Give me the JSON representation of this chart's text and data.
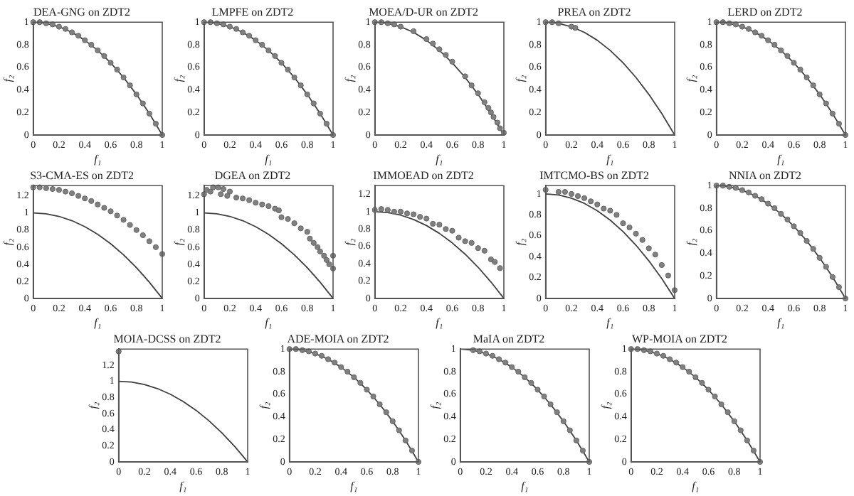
{
  "chart_data": [
    {
      "type": "scatter",
      "title": "DEA-GNG on ZDT2",
      "xlabel": "f₁",
      "ylabel": "f₂",
      "xlim": [
        0,
        1
      ],
      "ylim": [
        0,
        1
      ],
      "xticks": [
        0,
        0.2,
        0.4,
        0.6,
        0.8,
        1
      ],
      "yticks": [
        0,
        0.2,
        0.4,
        0.6,
        0.8,
        1
      ],
      "series": [
        {
          "type": "scatter",
          "marker": "circle",
          "color": "#808080",
          "x": [
            0,
            0.05,
            0.1,
            0.15,
            0.2,
            0.25,
            0.3,
            0.35,
            0.4,
            0.45,
            0.5,
            0.55,
            0.6,
            0.65,
            0.7,
            0.75,
            0.8,
            0.85,
            0.9,
            0.95,
            1
          ],
          "values": [
            1,
            1,
            0.99,
            0.98,
            0.96,
            0.94,
            0.91,
            0.88,
            0.84,
            0.8,
            0.75,
            0.7,
            0.64,
            0.58,
            0.51,
            0.44,
            0.36,
            0.28,
            0.19,
            0.1,
            0
          ]
        },
        {
          "type": "line",
          "marker": "none",
          "color": "#404040",
          "x": [
            0,
            0.1,
            0.2,
            0.3,
            0.4,
            0.5,
            0.6,
            0.7,
            0.8,
            0.9,
            1
          ],
          "values": [
            1,
            0.99,
            0.96,
            0.91,
            0.84,
            0.75,
            0.64,
            0.51,
            0.36,
            0.19,
            0
          ]
        }
      ]
    },
    {
      "type": "scatter",
      "title": "LMPFE on ZDT2",
      "xlabel": "f₁",
      "ylabel": "f₂",
      "xlim": [
        0,
        1
      ],
      "ylim": [
        0,
        1
      ],
      "xticks": [
        0,
        0.2,
        0.4,
        0.6,
        0.8,
        1
      ],
      "yticks": [
        0,
        0.2,
        0.4,
        0.6,
        0.8,
        1
      ],
      "series": [
        {
          "type": "scatter",
          "marker": "circle",
          "color": "#808080",
          "x": [
            0,
            0.05,
            0.1,
            0.15,
            0.2,
            0.25,
            0.3,
            0.35,
            0.4,
            0.45,
            0.5,
            0.55,
            0.6,
            0.65,
            0.7,
            0.75,
            0.8,
            0.85,
            0.9,
            0.95,
            1
          ],
          "values": [
            1,
            1,
            0.99,
            0.98,
            0.96,
            0.94,
            0.91,
            0.88,
            0.84,
            0.8,
            0.75,
            0.7,
            0.64,
            0.58,
            0.51,
            0.44,
            0.36,
            0.28,
            0.19,
            0.1,
            0
          ]
        },
        {
          "type": "line",
          "marker": "none",
          "color": "#404040",
          "x": [
            0,
            0.1,
            0.2,
            0.3,
            0.4,
            0.5,
            0.6,
            0.7,
            0.8,
            0.9,
            1
          ],
          "values": [
            1,
            0.99,
            0.96,
            0.91,
            0.84,
            0.75,
            0.64,
            0.51,
            0.36,
            0.19,
            0
          ]
        }
      ]
    },
    {
      "type": "scatter",
      "title": "MOEA/D-UR on ZDT2",
      "xlabel": "f₁",
      "ylabel": "f₂",
      "xlim": [
        0,
        1
      ],
      "ylim": [
        0,
        1
      ],
      "xticks": [
        0,
        0.2,
        0.4,
        0.6,
        0.8,
        1
      ],
      "yticks": [
        0,
        0.2,
        0.4,
        0.6,
        0.8,
        1
      ],
      "series": [
        {
          "type": "scatter",
          "marker": "circle",
          "color": "#808080",
          "x": [
            0,
            0.05,
            0.1,
            0.15,
            0.2,
            0.3,
            0.4,
            0.45,
            0.5,
            0.55,
            0.6,
            0.7,
            0.75,
            0.8,
            0.85,
            0.88,
            0.9,
            0.92,
            0.95,
            0.97,
            1
          ],
          "values": [
            1,
            1,
            0.99,
            0.98,
            0.96,
            0.92,
            0.85,
            0.81,
            0.76,
            0.71,
            0.65,
            0.52,
            0.44,
            0.37,
            0.29,
            0.24,
            0.2,
            0.16,
            0.11,
            0.06,
            0.02
          ]
        },
        {
          "type": "line",
          "marker": "none",
          "color": "#404040",
          "x": [
            0,
            0.1,
            0.2,
            0.3,
            0.4,
            0.5,
            0.6,
            0.7,
            0.8,
            0.9,
            1
          ],
          "values": [
            1,
            0.99,
            0.96,
            0.91,
            0.84,
            0.75,
            0.64,
            0.51,
            0.36,
            0.19,
            0
          ]
        }
      ]
    },
    {
      "type": "scatter",
      "title": "PREA on ZDT2",
      "xlabel": "f₁",
      "ylabel": "f₂",
      "xlim": [
        0,
        1
      ],
      "ylim": [
        0,
        1
      ],
      "xticks": [
        0,
        0.2,
        0.4,
        0.6,
        0.8,
        1
      ],
      "yticks": [
        0,
        0.2,
        0.4,
        0.6,
        0.8,
        1
      ],
      "series": [
        {
          "type": "scatter",
          "marker": "circle",
          "color": "#808080",
          "x": [
            0,
            0.05,
            0.1,
            0.2,
            0.23
          ],
          "values": [
            1,
            1,
            0.99,
            0.96,
            0.95
          ]
        },
        {
          "type": "line",
          "marker": "none",
          "color": "#404040",
          "x": [
            0,
            0.1,
            0.2,
            0.3,
            0.4,
            0.5,
            0.6,
            0.7,
            0.8,
            0.9,
            1
          ],
          "values": [
            1,
            0.99,
            0.96,
            0.91,
            0.84,
            0.75,
            0.64,
            0.51,
            0.36,
            0.19,
            0
          ]
        }
      ]
    },
    {
      "type": "scatter",
      "title": "LERD on ZDT2",
      "xlabel": "f₁",
      "ylabel": "f₂",
      "xlim": [
        0,
        1
      ],
      "ylim": [
        0,
        1
      ],
      "xticks": [
        0,
        0.2,
        0.4,
        0.6,
        0.8,
        1
      ],
      "yticks": [
        0,
        0.2,
        0.4,
        0.6,
        0.8,
        1
      ],
      "series": [
        {
          "type": "scatter",
          "marker": "circle",
          "color": "#808080",
          "x": [
            0,
            0.05,
            0.1,
            0.15,
            0.2,
            0.25,
            0.3,
            0.35,
            0.4,
            0.45,
            0.5,
            0.55,
            0.6,
            0.65,
            0.7,
            0.75,
            0.8,
            0.85,
            0.9,
            0.95,
            1
          ],
          "values": [
            1,
            1,
            0.99,
            0.98,
            0.96,
            0.94,
            0.91,
            0.88,
            0.84,
            0.8,
            0.75,
            0.7,
            0.64,
            0.58,
            0.51,
            0.44,
            0.36,
            0.28,
            0.19,
            0.1,
            0
          ]
        },
        {
          "type": "line",
          "marker": "none",
          "color": "#404040",
          "x": [
            0,
            0.1,
            0.2,
            0.3,
            0.4,
            0.5,
            0.6,
            0.7,
            0.8,
            0.9,
            1
          ],
          "values": [
            1,
            0.99,
            0.96,
            0.91,
            0.84,
            0.75,
            0.64,
            0.51,
            0.36,
            0.19,
            0
          ]
        }
      ]
    },
    {
      "type": "scatter",
      "title": "S3-CMA-ES on ZDT2",
      "xlabel": "f₁",
      "ylabel": "f₂",
      "xlim": [
        0,
        1
      ],
      "ylim": [
        0,
        1.32
      ],
      "xticks": [
        0,
        0.2,
        0.4,
        0.6,
        0.8,
        1
      ],
      "yticks": [
        0,
        0.2,
        0.4,
        0.6,
        0.8,
        1,
        1.2
      ],
      "series": [
        {
          "type": "scatter",
          "marker": "circle",
          "color": "#808080",
          "x": [
            0,
            0.05,
            0.1,
            0.15,
            0.2,
            0.25,
            0.3,
            0.35,
            0.4,
            0.45,
            0.5,
            0.55,
            0.6,
            0.65,
            0.7,
            0.75,
            0.8,
            0.85,
            0.9,
            0.95,
            1
          ],
          "values": [
            1.3,
            1.3,
            1.29,
            1.28,
            1.27,
            1.25,
            1.23,
            1.2,
            1.17,
            1.14,
            1.1,
            1.06,
            1.02,
            0.97,
            0.92,
            0.86,
            0.8,
            0.74,
            0.67,
            0.6,
            0.52
          ]
        },
        {
          "type": "line",
          "marker": "none",
          "color": "#404040",
          "x": [
            0,
            0.1,
            0.2,
            0.3,
            0.4,
            0.5,
            0.6,
            0.7,
            0.8,
            0.9,
            1
          ],
          "values": [
            1,
            0.99,
            0.96,
            0.91,
            0.84,
            0.75,
            0.64,
            0.51,
            0.36,
            0.19,
            0
          ]
        }
      ]
    },
    {
      "type": "scatter",
      "title": "DGEA on ZDT2",
      "xlabel": "f₁",
      "ylabel": "f₂",
      "xlim": [
        0,
        1
      ],
      "ylim": [
        0,
        1.32
      ],
      "xticks": [
        0,
        0.2,
        0.4,
        0.6,
        0.8,
        1
      ],
      "yticks": [
        0,
        0.2,
        0.4,
        0.6,
        0.8,
        1,
        1.2
      ],
      "series": [
        {
          "type": "scatter",
          "marker": "circle",
          "color": "#808080",
          "x": [
            0,
            0.02,
            0.05,
            0.07,
            0.11,
            0.13,
            0.15,
            0.18,
            0.2,
            0.25,
            0.3,
            0.35,
            0.4,
            0.45,
            0.5,
            0.55,
            0.58,
            0.6,
            0.65,
            0.7,
            0.75,
            0.8,
            0.82,
            0.85,
            0.88,
            0.9,
            0.93,
            0.95,
            0.97,
            1,
            1
          ],
          "values": [
            1.22,
            1.27,
            1.25,
            1.3,
            1.3,
            1.22,
            1.28,
            1.2,
            1.25,
            1.18,
            1.17,
            1.15,
            1.12,
            1.1,
            1.08,
            1.05,
            1.03,
            0.95,
            0.93,
            0.88,
            0.82,
            0.78,
            0.7,
            0.65,
            0.6,
            0.55,
            0.5,
            0.45,
            0.4,
            0.35,
            0.5
          ]
        },
        {
          "type": "line",
          "marker": "none",
          "color": "#404040",
          "x": [
            0,
            0.1,
            0.2,
            0.3,
            0.4,
            0.5,
            0.6,
            0.7,
            0.8,
            0.9,
            1
          ],
          "values": [
            1,
            0.99,
            0.96,
            0.91,
            0.84,
            0.75,
            0.64,
            0.51,
            0.36,
            0.19,
            0
          ]
        }
      ]
    },
    {
      "type": "scatter",
      "title": "IMMOEAD on ZDT2",
      "xlabel": "f₁",
      "ylabel": "f₂",
      "xlim": [
        0,
        1
      ],
      "ylim": [
        0,
        1.3
      ],
      "xticks": [
        0,
        0.2,
        0.4,
        0.6,
        0.8,
        1
      ],
      "yticks": [
        0,
        0.2,
        0.4,
        0.6,
        0.8,
        1,
        1.2
      ],
      "series": [
        {
          "type": "scatter",
          "marker": "circle",
          "color": "#808080",
          "x": [
            0,
            0.05,
            0.1,
            0.15,
            0.2,
            0.25,
            0.3,
            0.35,
            0.4,
            0.45,
            0.5,
            0.55,
            0.6,
            0.65,
            0.7,
            0.75,
            0.8,
            0.85,
            0.9,
            0.93,
            0.97
          ],
          "values": [
            1.02,
            1.03,
            1.02,
            1,
            1,
            0.98,
            0.97,
            0.94,
            0.92,
            0.86,
            0.85,
            0.8,
            0.78,
            0.7,
            0.66,
            0.64,
            0.58,
            0.55,
            0.45,
            0.42,
            0.35
          ]
        },
        {
          "type": "line",
          "marker": "none",
          "color": "#404040",
          "x": [
            0,
            0.1,
            0.2,
            0.3,
            0.4,
            0.5,
            0.6,
            0.7,
            0.8,
            0.9,
            1
          ],
          "values": [
            1,
            0.99,
            0.96,
            0.91,
            0.84,
            0.75,
            0.64,
            0.51,
            0.36,
            0.19,
            0
          ]
        }
      ]
    },
    {
      "type": "scatter",
      "title": "IMTCMO-BS on ZDT2",
      "xlabel": "f₁",
      "ylabel": "f₂",
      "xlim": [
        0,
        1
      ],
      "ylim": [
        0,
        1.08
      ],
      "xticks": [
        0,
        0.2,
        0.4,
        0.6,
        0.8,
        1
      ],
      "yticks": [
        0,
        0.2,
        0.4,
        0.6,
        0.8,
        1
      ],
      "series": [
        {
          "type": "scatter",
          "marker": "circle",
          "color": "#808080",
          "x": [
            0,
            0.1,
            0.15,
            0.2,
            0.25,
            0.3,
            0.35,
            0.4,
            0.45,
            0.5,
            0.55,
            0.6,
            0.65,
            0.7,
            0.75,
            0.8,
            0.85,
            0.9,
            0.95,
            1
          ],
          "values": [
            1.04,
            1.02,
            1.02,
            1,
            0.98,
            0.96,
            0.93,
            0.9,
            0.86,
            0.84,
            0.8,
            0.72,
            0.68,
            0.62,
            0.56,
            0.48,
            0.42,
            0.32,
            0.22,
            0.08
          ]
        },
        {
          "type": "line",
          "marker": "none",
          "color": "#404040",
          "x": [
            0,
            0.1,
            0.2,
            0.3,
            0.4,
            0.5,
            0.6,
            0.7,
            0.8,
            0.9,
            1
          ],
          "values": [
            1,
            0.99,
            0.96,
            0.91,
            0.84,
            0.75,
            0.64,
            0.51,
            0.36,
            0.19,
            0
          ]
        }
      ]
    },
    {
      "type": "scatter",
      "title": "NNIA on ZDT2",
      "xlabel": "f₁",
      "ylabel": "f₂",
      "xlim": [
        0,
        1
      ],
      "ylim": [
        0,
        1
      ],
      "xticks": [
        0,
        0.2,
        0.4,
        0.6,
        0.8,
        1
      ],
      "yticks": [
        0,
        0.2,
        0.4,
        0.6,
        0.8,
        1
      ],
      "series": [
        {
          "type": "scatter",
          "marker": "circle",
          "color": "#808080",
          "x": [
            0,
            0.05,
            0.1,
            0.15,
            0.2,
            0.25,
            0.3,
            0.35,
            0.4,
            0.45,
            0.5,
            0.55,
            0.6,
            0.65,
            0.7,
            0.75,
            0.8,
            0.85,
            0.9,
            0.95,
            1
          ],
          "values": [
            1,
            1,
            0.99,
            0.98,
            0.96,
            0.94,
            0.91,
            0.88,
            0.84,
            0.8,
            0.75,
            0.7,
            0.64,
            0.58,
            0.51,
            0.44,
            0.36,
            0.28,
            0.19,
            0.1,
            0
          ]
        },
        {
          "type": "line",
          "marker": "none",
          "color": "#404040",
          "x": [
            0,
            0.1,
            0.2,
            0.3,
            0.4,
            0.5,
            0.6,
            0.7,
            0.8,
            0.9,
            1
          ],
          "values": [
            1,
            0.99,
            0.96,
            0.91,
            0.84,
            0.75,
            0.64,
            0.51,
            0.36,
            0.19,
            0
          ]
        }
      ]
    },
    {
      "type": "scatter",
      "title": "MOIA-DCSS on ZDT2",
      "xlabel": "f₁",
      "ylabel": "f₂",
      "xlim": [
        0,
        1
      ],
      "ylim": [
        0,
        1.4
      ],
      "xticks": [
        0,
        0.2,
        0.4,
        0.6,
        0.8,
        1
      ],
      "yticks": [
        0,
        0.2,
        0.4,
        0.6,
        0.8,
        1,
        1.2
      ],
      "series": [
        {
          "type": "scatter",
          "marker": "circle",
          "color": "#808080",
          "x": [
            0
          ],
          "values": [
            1.37
          ]
        },
        {
          "type": "line",
          "marker": "none",
          "color": "#404040",
          "x": [
            0,
            0.1,
            0.2,
            0.3,
            0.4,
            0.5,
            0.6,
            0.7,
            0.8,
            0.9,
            1
          ],
          "values": [
            1,
            0.99,
            0.96,
            0.91,
            0.84,
            0.75,
            0.64,
            0.51,
            0.36,
            0.19,
            0
          ]
        }
      ]
    },
    {
      "type": "scatter",
      "title": "ADE-MOIA on ZDT2",
      "xlabel": "f₁",
      "ylabel": "f₂",
      "xlim": [
        0,
        1
      ],
      "ylim": [
        0,
        1
      ],
      "xticks": [
        0,
        0.2,
        0.4,
        0.6,
        0.8,
        1
      ],
      "yticks": [
        0,
        0.2,
        0.4,
        0.6,
        0.8,
        1
      ],
      "series": [
        {
          "type": "scatter",
          "marker": "circle",
          "color": "#808080",
          "x": [
            0,
            0.05,
            0.1,
            0.15,
            0.2,
            0.25,
            0.3,
            0.35,
            0.4,
            0.45,
            0.5,
            0.55,
            0.6,
            0.65,
            0.7,
            0.75,
            0.8,
            0.85,
            0.9,
            0.95,
            1
          ],
          "values": [
            1,
            1,
            0.99,
            0.98,
            0.96,
            0.94,
            0.91,
            0.88,
            0.84,
            0.8,
            0.75,
            0.7,
            0.64,
            0.58,
            0.51,
            0.44,
            0.36,
            0.28,
            0.19,
            0.1,
            0
          ]
        },
        {
          "type": "line",
          "marker": "none",
          "color": "#404040",
          "x": [
            0,
            0.1,
            0.2,
            0.3,
            0.4,
            0.5,
            0.6,
            0.7,
            0.8,
            0.9,
            1
          ],
          "values": [
            1,
            0.99,
            0.96,
            0.91,
            0.84,
            0.75,
            0.64,
            0.51,
            0.36,
            0.19,
            0
          ]
        }
      ]
    },
    {
      "type": "scatter",
      "title": "MaIA on ZDT2",
      "xlabel": "f₁",
      "ylabel": "f₂",
      "xlim": [
        0,
        1
      ],
      "ylim": [
        0,
        1
      ],
      "xticks": [
        0,
        0.2,
        0.4,
        0.6,
        0.8,
        1
      ],
      "yticks": [
        0,
        0.2,
        0.4,
        0.6,
        0.8,
        1
      ],
      "series": [
        {
          "type": "scatter",
          "marker": "circle",
          "color": "#808080",
          "x": [
            0.1,
            0.15,
            0.2,
            0.25,
            0.3,
            0.35,
            0.4,
            0.45,
            0.5,
            0.55,
            0.6,
            0.65,
            0.7,
            0.75,
            0.8,
            0.85,
            0.9,
            0.95,
            1
          ],
          "values": [
            0.99,
            0.98,
            0.96,
            0.94,
            0.91,
            0.88,
            0.84,
            0.8,
            0.75,
            0.7,
            0.64,
            0.58,
            0.51,
            0.44,
            0.36,
            0.28,
            0.19,
            0.1,
            0
          ]
        },
        {
          "type": "line",
          "marker": "none",
          "color": "#404040",
          "x": [
            0,
            0.1,
            0.2,
            0.3,
            0.4,
            0.5,
            0.6,
            0.7,
            0.8,
            0.9,
            1
          ],
          "values": [
            1,
            0.99,
            0.96,
            0.91,
            0.84,
            0.75,
            0.64,
            0.51,
            0.36,
            0.19,
            0
          ]
        }
      ]
    },
    {
      "type": "scatter",
      "title": "WP-MOIA on ZDT2",
      "xlabel": "f₁",
      "ylabel": "f₂",
      "xlim": [
        0,
        1
      ],
      "ylim": [
        0,
        1
      ],
      "xticks": [
        0,
        0.2,
        0.4,
        0.6,
        0.8,
        1
      ],
      "yticks": [
        0,
        0.2,
        0.4,
        0.6,
        0.8,
        1
      ],
      "series": [
        {
          "type": "scatter",
          "marker": "circle",
          "color": "#808080",
          "x": [
            0,
            0.05,
            0.1,
            0.15,
            0.2,
            0.25,
            0.3,
            0.35,
            0.4,
            0.45,
            0.5,
            0.55,
            0.6,
            0.65,
            0.7,
            0.75,
            0.8,
            0.85,
            0.9,
            0.95,
            1
          ],
          "values": [
            1,
            1,
            0.99,
            0.98,
            0.96,
            0.94,
            0.91,
            0.88,
            0.84,
            0.8,
            0.75,
            0.7,
            0.64,
            0.58,
            0.51,
            0.44,
            0.36,
            0.28,
            0.19,
            0.1,
            0
          ]
        },
        {
          "type": "line",
          "marker": "none",
          "color": "#404040",
          "x": [
            0,
            0.1,
            0.2,
            0.3,
            0.4,
            0.5,
            0.6,
            0.7,
            0.8,
            0.9,
            1
          ],
          "values": [
            1,
            0.99,
            0.96,
            0.91,
            0.84,
            0.75,
            0.64,
            0.51,
            0.36,
            0.19,
            0
          ]
        }
      ]
    }
  ]
}
